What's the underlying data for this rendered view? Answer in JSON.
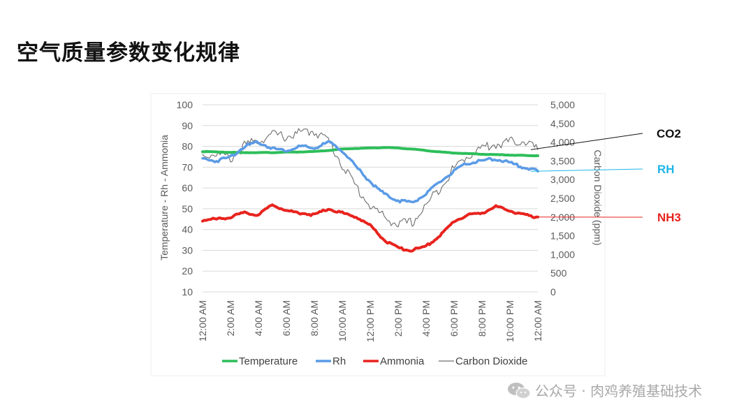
{
  "title": "空气质量参数变化规律",
  "watermark": "公众号 · 肉鸡养殖基础技术",
  "chart_data": {
    "type": "line",
    "xlabel": "",
    "ylabel": "Temperature - Rh - Ammonia",
    "y2label": "Carbon Dioxide (ppm)",
    "ylim": [
      10,
      100
    ],
    "y2lim": [
      0,
      5000
    ],
    "grid": true,
    "legend_position": "bottom",
    "x_ticks": [
      "12:00 AM",
      "2:00 AM",
      "4:00 AM",
      "6:00 AM",
      "8:00 AM",
      "10:00 AM",
      "12:00 PM",
      "2:00 PM",
      "4:00 PM",
      "6:00 PM",
      "8:00 PM",
      "10:00 PM",
      "12:00 AM"
    ],
    "y_ticks": [
      100,
      90,
      80,
      70,
      60,
      50,
      40,
      30,
      20,
      10
    ],
    "y2_ticks": [
      "5,000",
      "4,500",
      "4,000",
      "3,500",
      "3,000",
      "2,500",
      "2,000",
      "1,500",
      "1,000",
      "500",
      "0"
    ],
    "x": [
      0,
      1,
      2,
      3,
      4,
      5,
      6,
      7,
      8,
      9,
      10,
      11,
      12,
      13,
      14,
      15,
      16,
      17,
      18,
      19,
      20,
      21,
      22,
      23,
      24
    ],
    "series": [
      {
        "name": "Temperature",
        "axis": "left",
        "color": "#2DBE5A",
        "values": [
          77.5,
          77.3,
          77.1,
          77.0,
          77.0,
          77.0,
          77.2,
          77.3,
          77.5,
          78.0,
          78.7,
          79.0,
          79.2,
          79.4,
          79.2,
          78.7,
          78.0,
          77.3,
          76.8,
          76.5,
          76.2,
          76.0,
          75.8,
          75.6,
          75.5
        ]
      },
      {
        "name": "Rh",
        "axis": "left",
        "color": "#5B9BE6",
        "values": [
          74,
          73,
          75,
          80,
          82,
          79,
          78,
          80,
          79,
          82,
          78,
          70,
          63,
          57,
          54,
          53,
          57,
          63,
          68,
          72,
          73,
          74,
          72,
          70,
          68
        ]
      },
      {
        "name": "Ammonia",
        "axis": "left",
        "color": "#E8231E",
        "values": [
          44.5,
          45,
          46,
          48,
          47,
          52,
          49,
          48,
          47,
          50,
          48,
          46,
          42,
          35,
          31,
          30,
          32,
          37,
          44,
          47,
          48,
          51,
          49,
          47,
          46
        ]
      },
      {
        "name": "Carbon Dioxide",
        "axis": "right",
        "color": "#6E6E6E",
        "values": [
          3650,
          3700,
          3550,
          3900,
          4050,
          4200,
          4150,
          4250,
          4300,
          4050,
          3400,
          2800,
          2300,
          2000,
          1800,
          1850,
          2300,
          2800,
          3300,
          3650,
          3850,
          3950,
          4000,
          4050,
          3800
        ]
      }
    ],
    "annotations": [
      {
        "label": "CO2",
        "color": "#111111",
        "series": "Carbon Dioxide"
      },
      {
        "label": "RH",
        "color": "#1FB5EA",
        "series": "Rh"
      },
      {
        "label": "NH3",
        "color": "#E8231E",
        "series": "Ammonia"
      }
    ]
  }
}
